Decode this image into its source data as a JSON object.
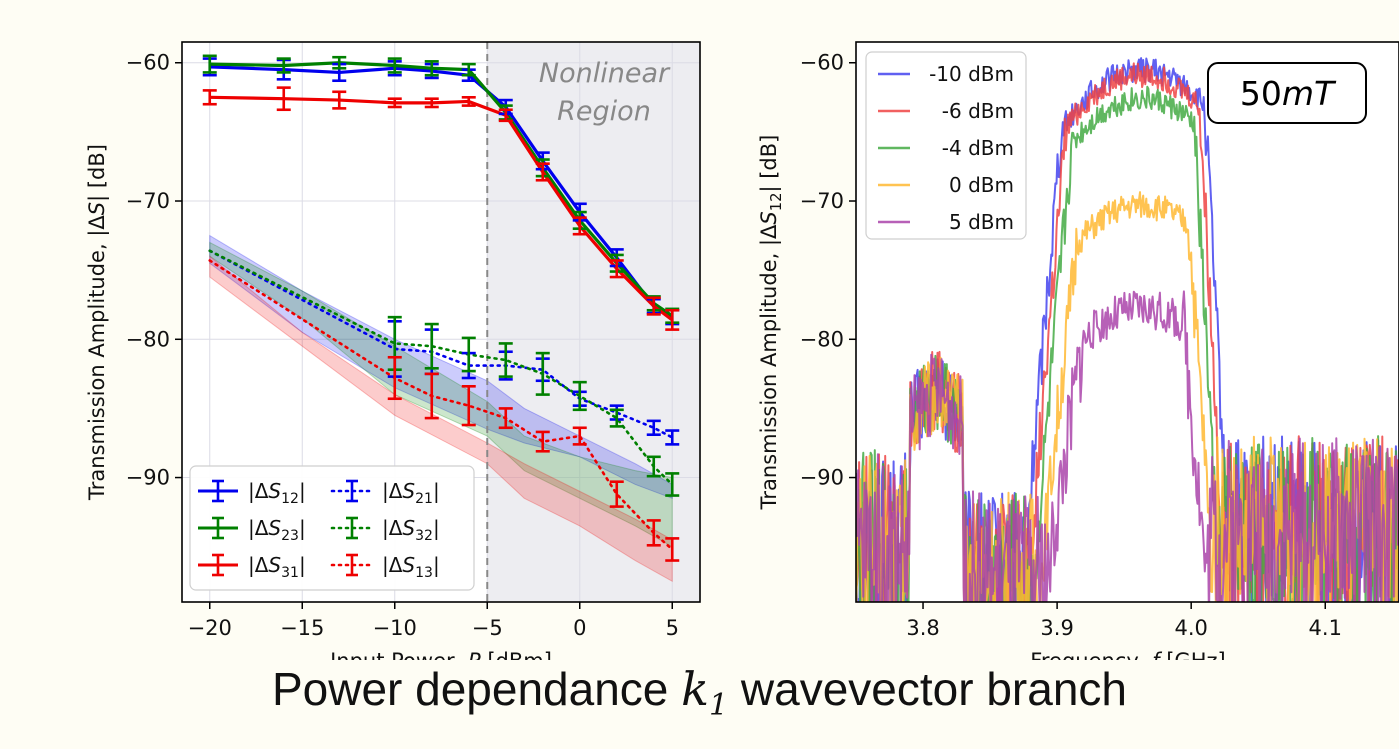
{
  "caption": {
    "prefix": "Power dependance ",
    "symbol": "k",
    "subscript": "1",
    "suffix": " wavevector branch"
  },
  "chart_data": [
    {
      "type": "line",
      "xlabel": "Input Power, P [dBm]",
      "ylabel": "Transmission Amplitude, |ΔS| [dB]",
      "xlim": [
        -21.5,
        6.5
      ],
      "ylim": [
        -99,
        -58.5
      ],
      "xticks": [
        -20,
        -15,
        -10,
        -5,
        0,
        5
      ],
      "yticks": [
        -60,
        -70,
        -80,
        -90
      ],
      "grid": true,
      "legend_position": "lower-left",
      "annotation": {
        "lines": [
          "Nonlinear",
          "Region"
        ],
        "shaded_from_x": -5
      },
      "series": [
        {
          "name": "|ΔS12|",
          "color": "#0000ee",
          "style": "solid",
          "x": [
            -20,
            -16,
            -13,
            -10,
            -8,
            -6,
            -4,
            -2,
            0,
            2,
            4,
            5
          ],
          "y": [
            -60.3,
            -60.5,
            -60.7,
            -60.4,
            -60.6,
            -60.9,
            -63.2,
            -67.1,
            -70.8,
            -74.1,
            -77.6,
            -78.4
          ],
          "err": [
            0.6,
            0.7,
            0.6,
            0.5,
            0.5,
            0.4,
            0.5,
            0.6,
            0.6,
            0.6,
            0.5,
            0.5
          ]
        },
        {
          "name": "|ΔS23|",
          "color": "#008000",
          "style": "solid",
          "x": [
            -20,
            -16,
            -13,
            -10,
            -8,
            -6,
            -4,
            -2,
            0,
            2,
            4,
            5
          ],
          "y": [
            -60.1,
            -60.2,
            -60.0,
            -60.2,
            -60.4,
            -60.5,
            -63.6,
            -67.6,
            -71.4,
            -74.5,
            -77.4,
            -78.3
          ],
          "err": [
            0.6,
            0.5,
            0.4,
            0.5,
            0.5,
            0.4,
            0.5,
            0.6,
            0.6,
            0.6,
            0.5,
            0.5
          ]
        },
        {
          "name": "|ΔS31|",
          "color": "#ee0000",
          "style": "solid",
          "x": [
            -20,
            -16,
            -13,
            -10,
            -8,
            -6,
            -4,
            -2,
            0,
            2,
            4,
            5
          ],
          "y": [
            -62.5,
            -62.6,
            -62.7,
            -62.9,
            -62.9,
            -62.8,
            -63.8,
            -67.9,
            -71.8,
            -74.9,
            -77.6,
            -78.6
          ],
          "err": [
            0.5,
            0.8,
            0.6,
            0.3,
            0.3,
            0.3,
            0.4,
            0.6,
            0.6,
            0.6,
            0.6,
            0.7
          ]
        },
        {
          "name": "|ΔS21|",
          "color": "#0000ee",
          "style": "dotted",
          "x": [
            -20,
            -10,
            -8,
            -6,
            -4,
            -2,
            0,
            2,
            4,
            5
          ],
          "y": [
            -73.6,
            -80.7,
            -80.9,
            -81.9,
            -81.9,
            -82.2,
            -84.3,
            -85.3,
            -86.4,
            -87.1
          ],
          "err": [
            0,
            2.0,
            1.6,
            0.9,
            1.0,
            0.8,
            0.5,
            0.5,
            0.5,
            0.5
          ]
        },
        {
          "name": "|ΔS32|",
          "color": "#008000",
          "style": "dotted",
          "x": [
            -20,
            -10,
            -8,
            -6,
            -4,
            -2,
            0,
            2,
            4,
            5
          ],
          "y": [
            -73.6,
            -80.3,
            -80.5,
            -81.1,
            -81.5,
            -82.5,
            -84.1,
            -85.7,
            -89.2,
            -90.5
          ],
          "err": [
            0,
            1.9,
            1.6,
            1.2,
            1.2,
            1.5,
            1.0,
            0.6,
            0.7,
            0.8
          ]
        },
        {
          "name": "|ΔS13|",
          "color": "#ee0000",
          "style": "dotted",
          "x": [
            -20,
            -10,
            -8,
            -6,
            -4,
            -2,
            0,
            2,
            4,
            5
          ],
          "y": [
            -74.3,
            -82.8,
            -84.1,
            -84.8,
            -85.7,
            -87.4,
            -87.0,
            -91.2,
            -94.0,
            -95.2
          ],
          "err": [
            0,
            1.5,
            1.6,
            1.4,
            0.7,
            0.7,
            0.6,
            0.9,
            0.9,
            0.8
          ]
        }
      ],
      "bands": [
        {
          "name": "|ΔS21|",
          "color": "#0000ee",
          "x": [
            -20,
            -15,
            -10,
            -5,
            -3,
            0,
            3,
            5
          ],
          "upper": [
            -72.5,
            -76.5,
            -80.0,
            -83.0,
            -85.0,
            -87.0,
            -89.0,
            -90.5
          ],
          "lower": [
            -74.5,
            -79.5,
            -83.5,
            -86.5,
            -87.5,
            -88.5,
            -90.5,
            -91.5
          ]
        },
        {
          "name": "|ΔS32|",
          "color": "#008000",
          "x": [
            -20,
            -15,
            -10,
            -5,
            -3,
            0,
            3,
            5
          ],
          "upper": [
            -73.0,
            -76.5,
            -80.5,
            -84.5,
            -87.0,
            -88.5,
            -89.5,
            -90.0
          ],
          "lower": [
            -74.0,
            -78.5,
            -84.0,
            -87.0,
            -89.5,
            -91.5,
            -93.5,
            -95.0
          ]
        },
        {
          "name": "|ΔS13|",
          "color": "#ee0000",
          "x": [
            -20,
            -15,
            -10,
            -5,
            -3,
            0,
            3,
            5
          ],
          "upper": [
            -74.0,
            -79.5,
            -84.0,
            -87.5,
            -89.0,
            -91.0,
            -93.0,
            -94.5
          ],
          "lower": [
            -75.5,
            -80.5,
            -85.5,
            -89.0,
            -91.5,
            -93.5,
            -96.0,
            -97.5
          ]
        }
      ]
    },
    {
      "type": "line",
      "xlabel": "Frequency, f [GHz]",
      "ylabel": "Transmission Amplitude, |ΔS12| [dB]",
      "xlim": [
        3.75,
        4.155
      ],
      "ylim": [
        -99,
        -58.5
      ],
      "xticks": [
        3.8,
        3.9,
        4.0,
        4.1
      ],
      "yticks": [
        -60,
        -70,
        -80,
        -90
      ],
      "grid": false,
      "legend_position": "top-left",
      "annotation": "50mT",
      "series": [
        {
          "name": "-10 dBm",
          "color": "#4444ee",
          "peak": -60.5,
          "ripple": 0.9
        },
        {
          "name": "-6 dBm",
          "color": "#ee4444",
          "peak": -60.9,
          "ripple": 0.9
        },
        {
          "name": "-4 dBm",
          "color": "#44aa44",
          "peak": -62.6,
          "ripple": 0.9
        },
        {
          "name": "0 dBm",
          "color": "#ffb833",
          "peak": -70.3,
          "ripple": 1.0
        },
        {
          "name": "5 dBm",
          "color": "#aa44aa",
          "peak": -77.8,
          "ripple": 1.4
        }
      ]
    }
  ]
}
